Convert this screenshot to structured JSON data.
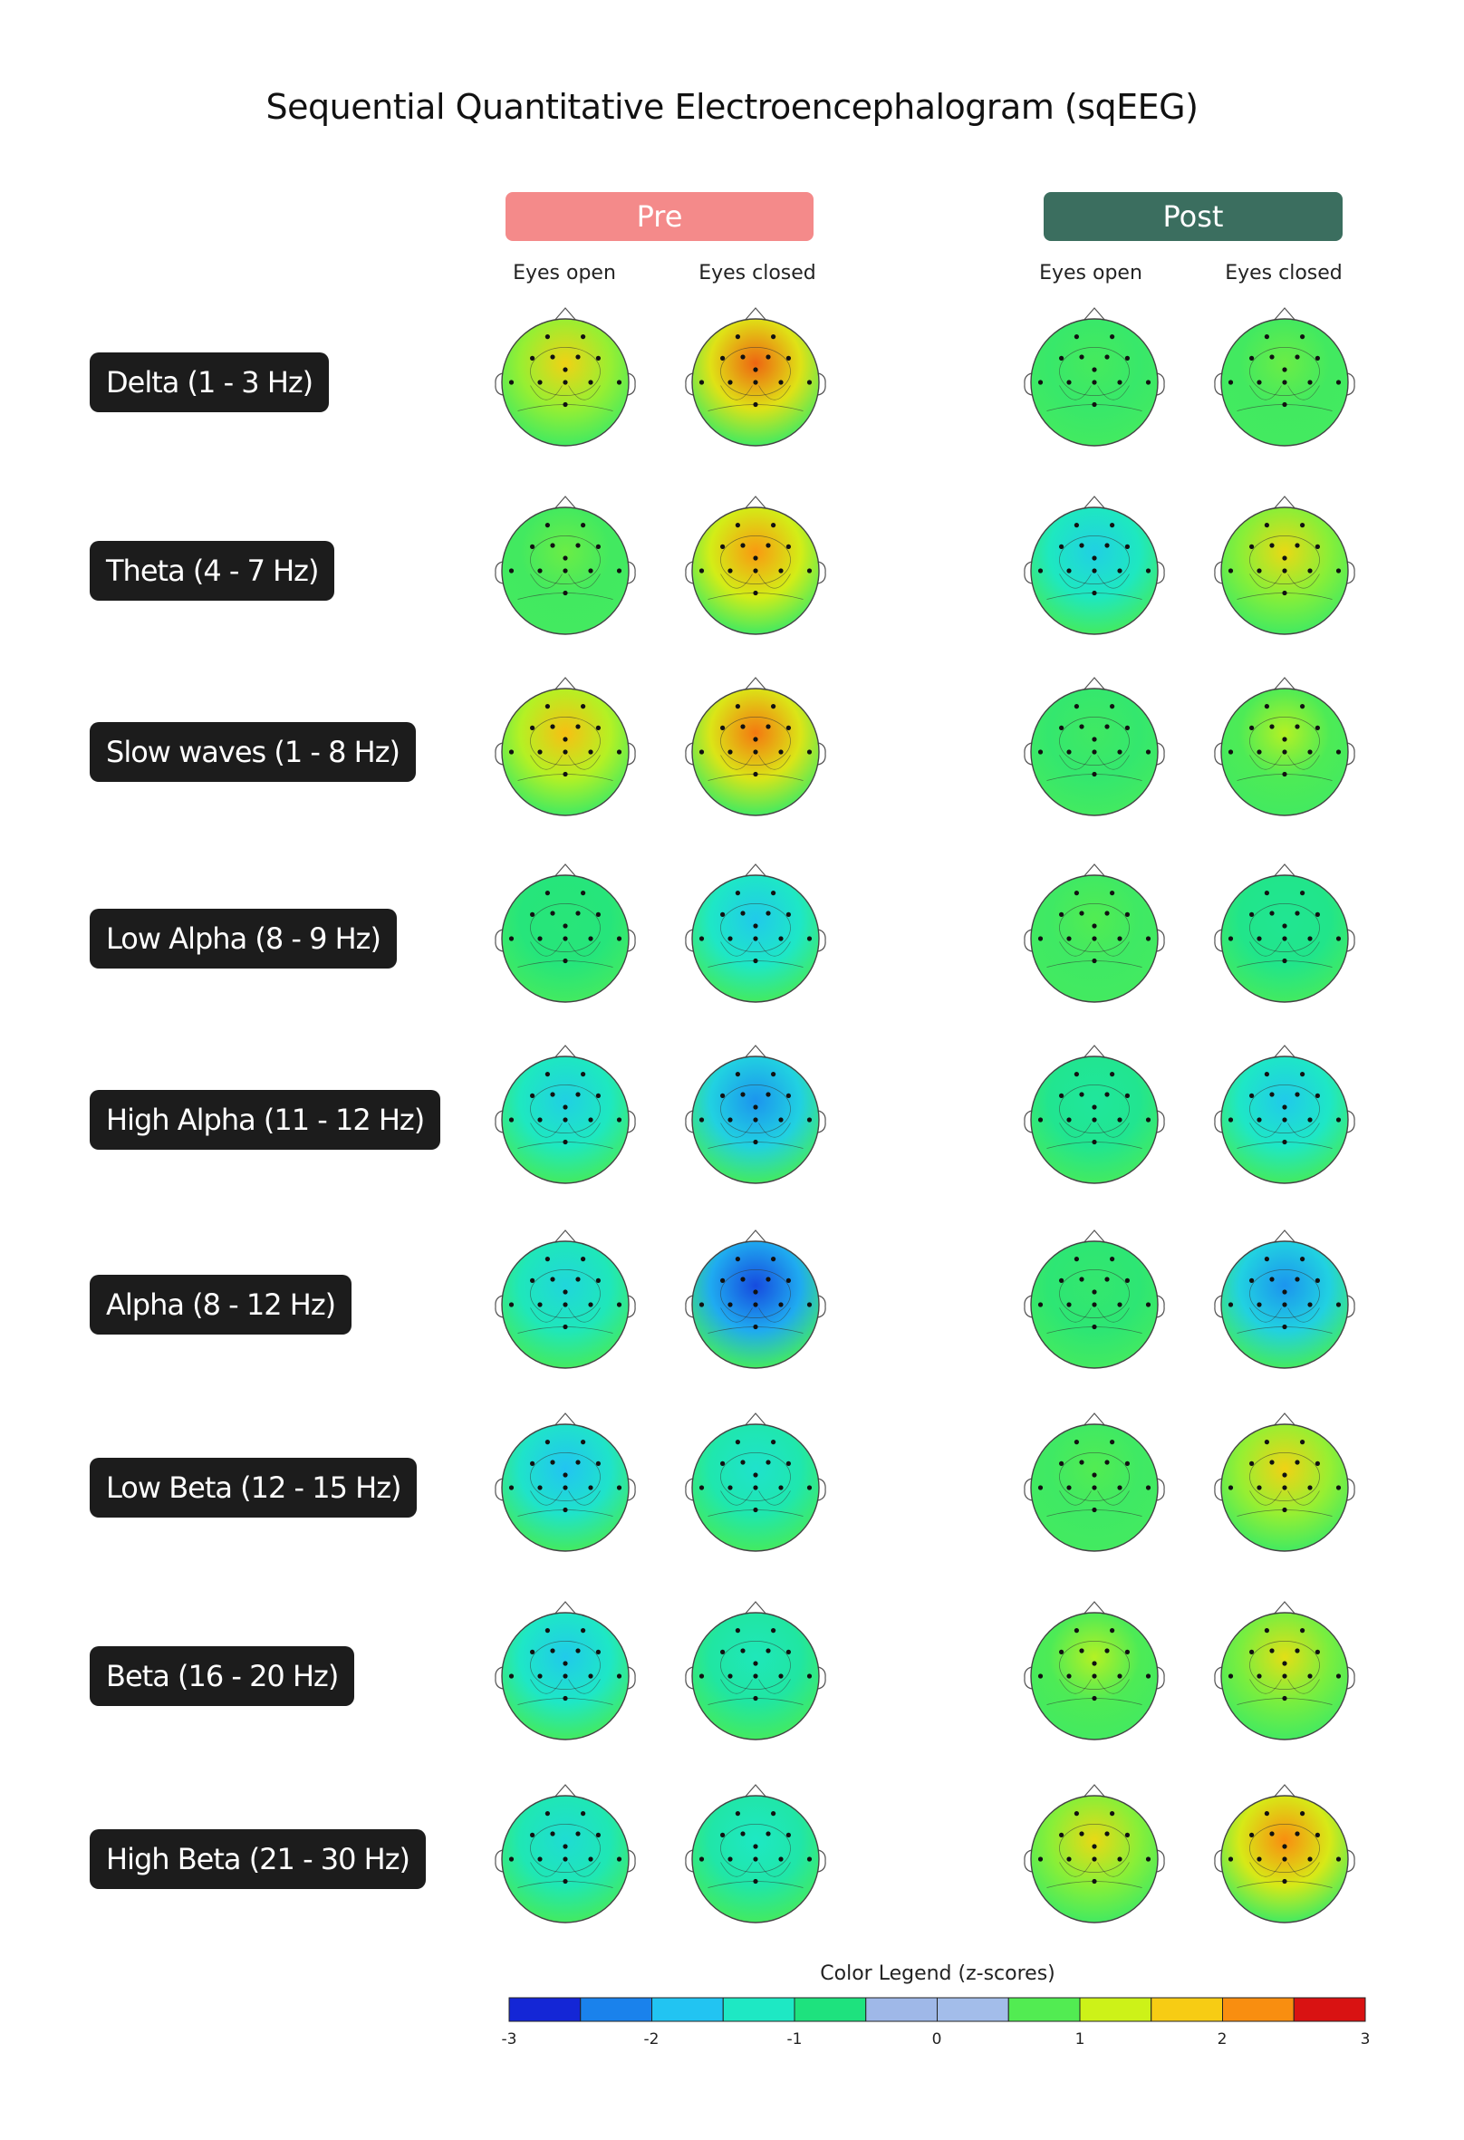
{
  "title": "Sequential Quantitative Electroencephalogram (sqEEG)",
  "groups": [
    {
      "label": "Pre",
      "color": "#f48a8a",
      "conditions": [
        "Eyes open",
        "Eyes closed"
      ]
    },
    {
      "label": "Post",
      "color": "#3b6e5f",
      "conditions": [
        "Eyes open",
        "Eyes closed"
      ]
    }
  ],
  "bands": [
    "Delta (1 - 3 Hz)",
    "Theta (4 - 7 Hz)",
    "Slow waves (1 - 8 Hz)",
    "Low Alpha (8 - 9 Hz)",
    "High Alpha (11 - 12 Hz)",
    "Alpha (8 - 12 Hz)",
    "Low Beta (12 - 15 Hz)",
    "Beta (16 - 20 Hz)",
    "High Beta (21 - 30 Hz)"
  ],
  "topomap_dominant_z": [
    [
      1.8,
      2.6,
      0.6,
      0.9
    ],
    [
      0.9,
      2.3,
      -1.1,
      1.7
    ],
    [
      2.0,
      2.5,
      0.5,
      1.2
    ],
    [
      0.1,
      -1.2,
      0.8,
      -0.2
    ],
    [
      -1.1,
      -1.8,
      -0.3,
      -1.2
    ],
    [
      -1.0,
      -2.6,
      0.3,
      -1.8
    ],
    [
      -1.3,
      -0.8,
      0.8,
      1.8
    ],
    [
      -1.2,
      -0.6,
      1.2,
      1.6
    ],
    [
      -0.9,
      -0.7,
      1.7,
      2.4
    ]
  ],
  "legend": {
    "title": "Color Legend (z-scores)",
    "ticks": [
      "-3",
      "-2",
      "-1",
      "0",
      "1",
      "2",
      "3"
    ],
    "colors": [
      "#1426d6",
      "#1a82ec",
      "#22c4f2",
      "#1ee8c4",
      "#1ee27e",
      "#9fb8e8",
      "#a3bdea",
      "#52ec52",
      "#cdf218",
      "#f7cc14",
      "#f98e10",
      "#d91212"
    ]
  }
}
